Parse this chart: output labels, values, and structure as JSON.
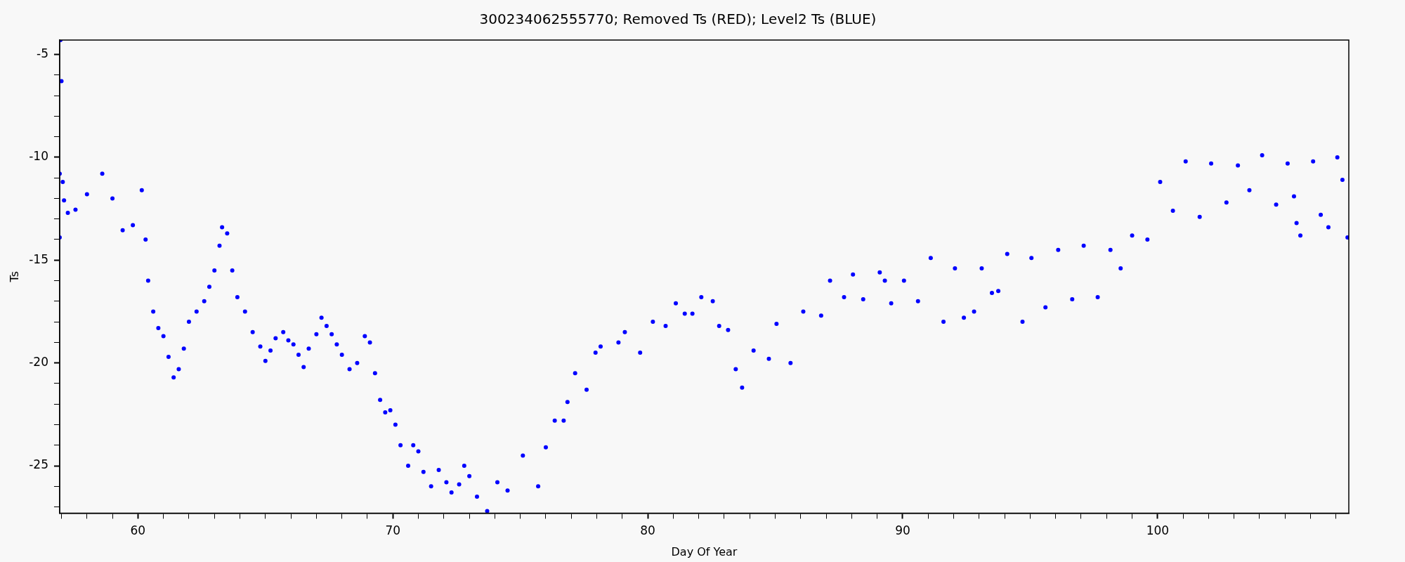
{
  "chart_data": {
    "type": "scatter",
    "title": "300234062555770; Removed Ts (RED); Level2 Ts (BLUE)",
    "xlabel": "Day Of Year",
    "ylabel": "Ts",
    "marker": "circle",
    "legend": false,
    "grid": false,
    "xlim": [
      56.93,
      107.5
    ],
    "ylim": [
      -27.3,
      -4.3
    ],
    "xticks": [
      {
        "value": 57,
        "label": null
      },
      {
        "value": 58,
        "label": null
      },
      {
        "value": 59,
        "label": null
      },
      60,
      {
        "value": 61,
        "label": null
      },
      {
        "value": 62,
        "label": null
      },
      {
        "value": 63,
        "label": null
      },
      {
        "value": 64,
        "label": null
      },
      {
        "value": 65,
        "label": null
      },
      {
        "value": 66,
        "label": null
      },
      {
        "value": 67,
        "label": null
      },
      {
        "value": 68,
        "label": null
      },
      {
        "value": 69,
        "label": null
      },
      70,
      {
        "value": 71,
        "label": null
      },
      {
        "value": 72,
        "label": null
      },
      {
        "value": 73,
        "label": null
      },
      {
        "value": 74,
        "label": null
      },
      {
        "value": 75,
        "label": null
      },
      {
        "value": 76,
        "label": null
      },
      {
        "value": 77,
        "label": null
      },
      {
        "value": 78,
        "label": null
      },
      {
        "value": 79,
        "label": null
      },
      80,
      {
        "value": 81,
        "label": null
      },
      {
        "value": 82,
        "label": null
      },
      {
        "value": 83,
        "label": null
      },
      {
        "value": 84,
        "label": null
      },
      {
        "value": 85,
        "label": null
      },
      {
        "value": 86,
        "label": null
      },
      {
        "value": 87,
        "label": null
      },
      {
        "value": 88,
        "label": null
      },
      {
        "value": 89,
        "label": null
      },
      90,
      {
        "value": 91,
        "label": null
      },
      {
        "value": 92,
        "label": null
      },
      {
        "value": 93,
        "label": null
      },
      {
        "value": 94,
        "label": null
      },
      {
        "value": 95,
        "label": null
      },
      {
        "value": 96,
        "label": null
      },
      {
        "value": 97,
        "label": null
      },
      {
        "value": 98,
        "label": null
      },
      {
        "value": 99,
        "label": null
      },
      100,
      {
        "value": 101,
        "label": null
      },
      {
        "value": 102,
        "label": null
      },
      {
        "value": 103,
        "label": null
      },
      {
        "value": 104,
        "label": null
      },
      {
        "value": 105,
        "label": null
      },
      {
        "value": 106,
        "label": null
      },
      {
        "value": 107,
        "label": null
      }
    ],
    "yticks": [
      {
        "value": -27,
        "label": null
      },
      {
        "value": -26,
        "label": null
      },
      -25,
      {
        "value": -24,
        "label": null
      },
      {
        "value": -23,
        "label": null
      },
      {
        "value": -22,
        "label": null
      },
      {
        "value": -21,
        "label": null
      },
      -20,
      {
        "value": -19,
        "label": null
      },
      {
        "value": -18,
        "label": null
      },
      {
        "value": -17,
        "label": null
      },
      {
        "value": -16,
        "label": null
      },
      -15,
      {
        "value": -14,
        "label": null
      },
      {
        "value": -13,
        "label": null
      },
      {
        "value": -12,
        "label": null
      },
      {
        "value": -11,
        "label": null
      },
      -10,
      {
        "value": -9,
        "label": null
      },
      {
        "value": -8,
        "label": null
      },
      {
        "value": -7,
        "label": null
      },
      {
        "value": -6,
        "label": null
      },
      -5
    ],
    "series": [
      {
        "color": "#0000ff",
        "x": [
          56.93,
          56.93,
          56.96,
          57.0,
          57.05,
          57.1,
          57.25,
          57.55,
          58.0,
          58.6,
          59.0,
          59.4,
          59.8,
          60.15,
          60.3,
          60.4,
          60.6,
          60.8,
          61.0,
          61.2,
          61.4,
          61.6,
          61.8,
          62.0,
          62.3,
          62.6,
          62.8,
          63.0,
          63.2,
          63.3,
          63.5,
          63.7,
          63.9,
          64.2,
          64.5,
          64.8,
          65.0,
          65.2,
          65.4,
          65.7,
          65.9,
          66.1,
          66.3,
          66.5,
          66.7,
          67.0,
          67.2,
          67.4,
          67.6,
          67.8,
          68.0,
          68.3,
          68.6,
          68.9,
          69.1,
          69.3,
          69.5,
          69.7,
          69.9,
          70.1,
          70.3,
          70.6,
          70.8,
          71.0,
          71.2,
          71.5,
          71.8,
          72.1,
          72.3,
          72.6,
          72.8,
          73.0,
          73.3,
          73.7,
          74.1,
          74.5,
          75.1,
          75.7,
          76.0,
          76.35,
          76.7,
          76.85,
          77.15,
          77.6,
          77.95,
          78.15,
          78.85,
          79.1,
          79.7,
          80.2,
          80.7,
          81.1,
          81.45,
          81.75,
          82.1,
          82.55,
          82.8,
          83.15,
          83.45,
          83.7,
          84.15,
          84.75,
          85.05,
          85.6,
          86.1,
          86.8,
          87.15,
          87.7,
          88.05,
          88.45,
          89.1,
          89.3,
          89.55,
          90.05,
          90.6,
          91.1,
          91.6,
          92.05,
          92.4,
          92.8,
          93.1,
          93.5,
          93.75,
          94.1,
          94.7,
          95.05,
          95.6,
          96.1,
          96.65,
          97.1,
          97.65,
          98.15,
          98.55,
          99.0,
          99.6,
          100.1,
          100.6,
          101.1,
          101.65,
          102.1,
          102.7,
          103.15,
          103.6,
          104.1,
          104.65,
          105.1,
          105.35,
          105.45,
          105.6,
          106.1,
          106.4,
          106.7,
          107.05,
          107.25,
          107.45
        ],
        "values": [
          -10.8,
          -13.9,
          -4.3,
          -6.3,
          -11.2,
          -12.1,
          -12.7,
          -12.55,
          -11.8,
          -10.8,
          -12.0,
          -13.55,
          -13.3,
          -11.6,
          -14.0,
          -16.0,
          -17.5,
          -18.3,
          -18.7,
          -19.7,
          -20.7,
          -20.3,
          -19.3,
          -18.0,
          -17.5,
          -17.0,
          -16.3,
          -15.5,
          -14.3,
          -13.4,
          -13.7,
          -15.5,
          -16.8,
          -17.5,
          -18.5,
          -19.2,
          -19.9,
          -19.4,
          -18.8,
          -18.5,
          -18.9,
          -19.1,
          -19.6,
          -20.2,
          -19.3,
          -18.6,
          -17.8,
          -18.2,
          -18.6,
          -19.1,
          -19.6,
          -20.3,
          -20.0,
          -18.7,
          -19.0,
          -20.5,
          -21.8,
          -22.4,
          -22.3,
          -23.0,
          -24.0,
          -25.0,
          -24.0,
          -24.3,
          -25.3,
          -26.0,
          -25.2,
          -25.8,
          -26.3,
          -25.9,
          -25.0,
          -25.5,
          -26.5,
          -27.2,
          -25.8,
          -26.2,
          -24.5,
          -26.0,
          -24.1,
          -22.8,
          -22.8,
          -21.9,
          -20.5,
          -21.3,
          -19.5,
          -19.2,
          -19.0,
          -18.5,
          -19.5,
          -18.0,
          -18.2,
          -17.1,
          -17.6,
          -17.6,
          -16.8,
          -17.0,
          -18.2,
          -18.4,
          -20.3,
          -21.2,
          -19.4,
          -19.8,
          -18.1,
          -20.0,
          -17.5,
          -17.7,
          -16.0,
          -16.8,
          -15.7,
          -16.9,
          -15.6,
          -16.0,
          -17.1,
          -16.0,
          -17.0,
          -14.9,
          -18.0,
          -15.4,
          -17.8,
          -17.5,
          -15.4,
          -16.6,
          -16.5,
          -14.7,
          -18.0,
          -14.9,
          -17.3,
          -14.5,
          -16.9,
          -14.3,
          -16.8,
          -14.5,
          -15.4,
          -13.8,
          -14.0,
          -11.2,
          -12.6,
          -10.2,
          -12.9,
          -10.3,
          -12.2,
          -10.4,
          -11.6,
          -9.9,
          -12.3,
          -10.3,
          -11.9,
          -13.2,
          -13.8,
          -10.2,
          -12.8,
          -13.4,
          -10.0,
          -11.1,
          -13.9
        ]
      }
    ]
  }
}
